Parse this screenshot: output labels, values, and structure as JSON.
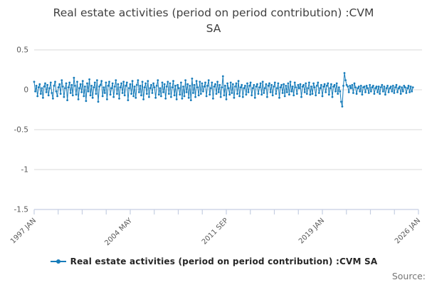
{
  "title": {
    "line1": "Real estate activities (period on period contribution) :CVM",
    "line2": "SA"
  },
  "legend": {
    "label": "Real estate activities (period on period contribution) :CVM SA"
  },
  "source": {
    "label": "Source:"
  },
  "colors": {
    "series": "#177cba",
    "gridline": "#d9d9d9",
    "axis": "#c5cee2",
    "tick_label": "#595959",
    "title_text": "#3f3f3f"
  },
  "chart_data": {
    "type": "line",
    "title": "Real estate activities (period on period contribution) :CVM SA",
    "xlabel": "",
    "ylabel": "",
    "frequency": "monthly",
    "legend_position": "bottom",
    "grid": "horizontal",
    "marker": "dot",
    "y_axis": {
      "max": 0.5,
      "min": -1.5,
      "ticks": [
        {
          "label": "0.5",
          "value": 0.5
        },
        {
          "label": "0",
          "value": 0
        },
        {
          "label": "-0.5",
          "value": -0.5
        },
        {
          "label": "-1",
          "value": -1
        },
        {
          "label": "-1.5",
          "value": -1.5
        }
      ]
    },
    "x_axis": {
      "start_label": "1997 JAN",
      "end_label": "2026 JAN",
      "total_units": 348,
      "n_ticks": 17,
      "label_every": 4,
      "tick_labels": [
        "1997 JAN",
        "2004 MAY",
        "2011 SEP",
        "2019 JAN",
        "2026 JAN"
      ]
    },
    "series": [
      {
        "name": "Real estate activities (period on period contribution) :CVM SA",
        "color": "#177cba",
        "start": "1997 JAN",
        "values": [
          0.1,
          -0.02,
          0.05,
          -0.08,
          0.03,
          0.07,
          -0.05,
          0.02,
          -0.1,
          0.04,
          0.08,
          -0.03,
          0.06,
          -0.07,
          0.02,
          0.09,
          -0.04,
          -0.11,
          0.05,
          0.1,
          -0.02,
          -0.08,
          0.03,
          0.07,
          -0.05,
          0.12,
          0.04,
          -0.09,
          0.02,
          0.08,
          -0.13,
          0.03,
          0.09,
          -0.04,
          0.06,
          -0.07,
          0.15,
          0.05,
          -0.06,
          0.1,
          -0.12,
          0.02,
          0.07,
          -0.03,
          0.11,
          -0.08,
          0.04,
          -0.14,
          0.08,
          -0.02,
          0.13,
          -0.07,
          0.05,
          -0.1,
          0.03,
          0.09,
          -0.05,
          0.12,
          -0.15,
          0.04,
          0.06,
          0.11,
          -0.08,
          0.03,
          -0.04,
          0.09,
          -0.12,
          0.05,
          0.1,
          -0.06,
          0.02,
          0.08,
          -0.09,
          0.04,
          0.12,
          -0.05,
          0.07,
          -0.11,
          0.03,
          0.08,
          -0.04,
          0.1,
          -0.07,
          0.05,
          0.09,
          -0.13,
          0.02,
          0.07,
          -0.05,
          0.11,
          -0.08,
          0.04,
          -0.1,
          0.06,
          0.12,
          -0.03,
          0.05,
          -0.07,
          0.1,
          -0.12,
          0.03,
          0.08,
          -0.05,
          0.11,
          -0.09,
          0.02,
          0.06,
          -0.04,
          0.08,
          0.03,
          -0.1,
          0.05,
          0.12,
          -0.06,
          0.02,
          -0.08,
          0.09,
          -0.03,
          0.07,
          -0.11,
          0.04,
          0.1,
          -0.05,
          0.08,
          -0.09,
          0.03,
          0.11,
          -0.07,
          0.05,
          -0.12,
          0.06,
          0.02,
          -0.06,
          0.09,
          -0.11,
          0.04,
          -0.08,
          0.12,
          -0.03,
          0.07,
          -0.1,
          0.05,
          -0.13,
          0.14,
          -0.04,
          0.06,
          -0.09,
          0.11,
          0.03,
          -0.07,
          0.1,
          -0.05,
          0.08,
          -0.02,
          0.04,
          0.09,
          -0.08,
          0.05,
          0.12,
          -0.06,
          0.02,
          0.09,
          -0.11,
          0.04,
          0.07,
          -0.05,
          0.1,
          -0.03,
          0.06,
          -0.09,
          0.03,
          0.17,
          -0.07,
          0.05,
          -0.12,
          0.08,
          0.02,
          -0.06,
          0.09,
          -0.04,
          0.07,
          -0.1,
          0.04,
          0.08,
          -0.05,
          0.11,
          -0.08,
          0.03,
          0.06,
          -0.09,
          0.02,
          0.05,
          -0.06,
          0.08,
          -0.03,
          0.05,
          0.09,
          -0.07,
          0.02,
          0.06,
          -0.1,
          0.04,
          0.07,
          -0.05,
          0.03,
          0.08,
          -0.06,
          0.1,
          -0.04,
          0.02,
          0.07,
          -0.09,
          0.05,
          0.08,
          -0.03,
          0.06,
          -0.07,
          0.04,
          0.09,
          -0.05,
          0.02,
          0.08,
          -0.1,
          0.03,
          0.06,
          -0.04,
          0.07,
          -0.08,
          0.05,
          -0.03,
          0.08,
          -0.06,
          0.1,
          -0.02,
          0.04,
          -0.07,
          0.09,
          0.03,
          -0.05,
          0.06,
          0.02,
          0.07,
          -0.09,
          0.04,
          0.06,
          -0.03,
          0.08,
          -0.05,
          0.02,
          0.09,
          -0.06,
          0.04,
          -0.05,
          0.08,
          0.03,
          -0.07,
          0.05,
          0.09,
          -0.04,
          0.02,
          0.06,
          -0.08,
          0.04,
          0.07,
          -0.03,
          0.05,
          0.08,
          -0.06,
          0.02,
          0.07,
          -0.09,
          0.04,
          0.06,
          -0.02,
          0.08,
          -0.05,
          0.03,
          -0.02,
          -0.15,
          -0.21,
          0.05,
          0.21,
          0.12,
          0.06,
          0.04,
          -0.03,
          0.05,
          0.02,
          0.06,
          -0.04,
          0.08,
          0.03,
          -0.05,
          0.02,
          0.04,
          -0.02,
          0.05,
          -0.06,
          0.03,
          0.04,
          -0.03,
          0.05,
          0.02,
          -0.04,
          0.06,
          -0.02,
          0.03,
          0.05,
          -0.05,
          0.02,
          0.04,
          -0.03,
          0.04,
          -0.05,
          0.03,
          0.06,
          -0.02,
          0.04,
          -0.06,
          0.02,
          0.05,
          -0.03,
          0.02,
          0.04,
          -0.02,
          0.05,
          -0.04,
          0.03,
          0.06,
          -0.03,
          0.02,
          0.04,
          -0.05,
          0.03,
          -0.02,
          0.05,
          0.03,
          -0.04,
          0.02,
          0.05,
          -0.03,
          0.04,
          -0.02,
          0.03
        ]
      }
    ]
  }
}
